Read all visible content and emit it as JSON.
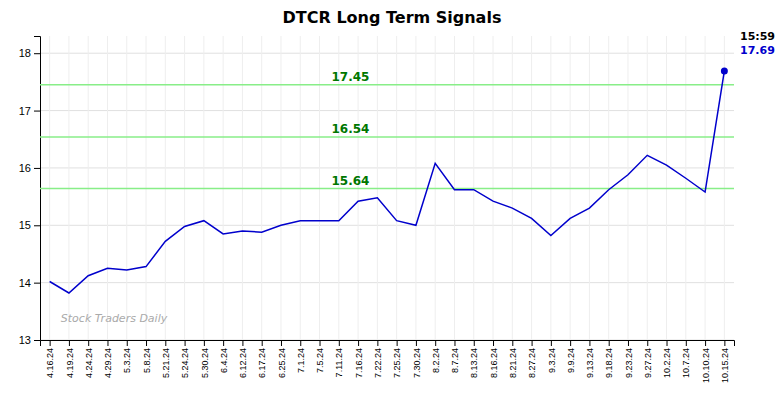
{
  "chart_data": {
    "type": "line",
    "title": "DTCR Long Term Signals",
    "categories": [
      "4.16.24",
      "4.19.24",
      "4.24.24",
      "4.29.24",
      "5.3.24",
      "5.8.24",
      "5.21.24",
      "5.24.24",
      "5.30.24",
      "6.4.24",
      "6.12.24",
      "6.17.24",
      "6.25.24",
      "7.1.24",
      "7.5.24",
      "7.11.24",
      "7.16.24",
      "7.22.24",
      "7.25.24",
      "7.30.24",
      "8.2.24",
      "8.7.24",
      "8.13.24",
      "8.16.24",
      "8.21.24",
      "8.27.24",
      "9.3.24",
      "9.9.24",
      "9.13.24",
      "9.18.24",
      "9.23.24",
      "9.27.24",
      "10.2.24",
      "10.7.24",
      "10.10.24",
      "10.15.24"
    ],
    "values": [
      14.02,
      13.82,
      14.12,
      14.25,
      14.22,
      14.28,
      14.72,
      14.98,
      15.08,
      14.85,
      14.9,
      14.88,
      15.0,
      15.08,
      15.08,
      15.08,
      15.42,
      15.48,
      15.08,
      15.0,
      16.08,
      15.62,
      15.62,
      15.42,
      15.3,
      15.12,
      14.82,
      15.12,
      15.3,
      15.62,
      15.88,
      16.22,
      16.05,
      15.82,
      15.58,
      17.69
    ],
    "color": "#0000cc",
    "ylim": [
      13,
      18.3
    ],
    "yticks": [
      13,
      14,
      15,
      16,
      17,
      18
    ],
    "grid": true,
    "hlines": [
      {
        "value": 15.64,
        "label": "15.64",
        "color": "#88ee88"
      },
      {
        "value": 16.54,
        "label": "16.54",
        "color": "#88ee88"
      },
      {
        "value": 17.45,
        "label": "17.45",
        "color": "#88ee88"
      }
    ],
    "annotations": [
      "15:59",
      "17.69",
      "Stock Traders Daily"
    ]
  }
}
